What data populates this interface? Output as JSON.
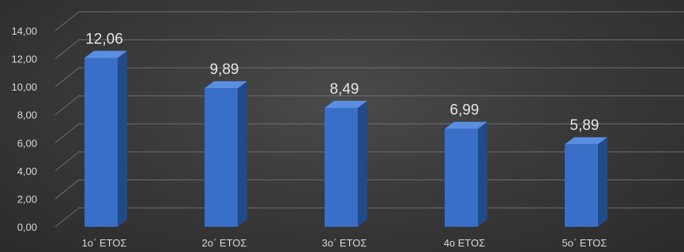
{
  "chart_data": {
    "type": "bar",
    "categories": [
      "1ο΄ ΕΤΟΣ",
      "2ο΄ ΕΤΟΣ",
      "3ο΄ ΕΤΟΣ",
      "4ο ΕΤΟΣ",
      "5ο΄ ΕΤΟΣ"
    ],
    "values": [
      12.06,
      9.89,
      8.49,
      6.99,
      5.89
    ],
    "value_labels": [
      "12,06",
      "9,89",
      "8,49",
      "6,99",
      "5,89"
    ],
    "y_ticks": [
      "0,00",
      "2,00",
      "4,00",
      "6,00",
      "8,00",
      "10,00",
      "12,00",
      "14,00"
    ],
    "ylim": [
      0,
      14
    ],
    "grid": true,
    "bar_style": "3d",
    "colors": {
      "bar_front": "#3a6fc8",
      "bar_side": "#1f4a8c",
      "bar_top": "#5a8ee0",
      "background": "#3a3a3a",
      "text": "#d9d9d9"
    }
  }
}
